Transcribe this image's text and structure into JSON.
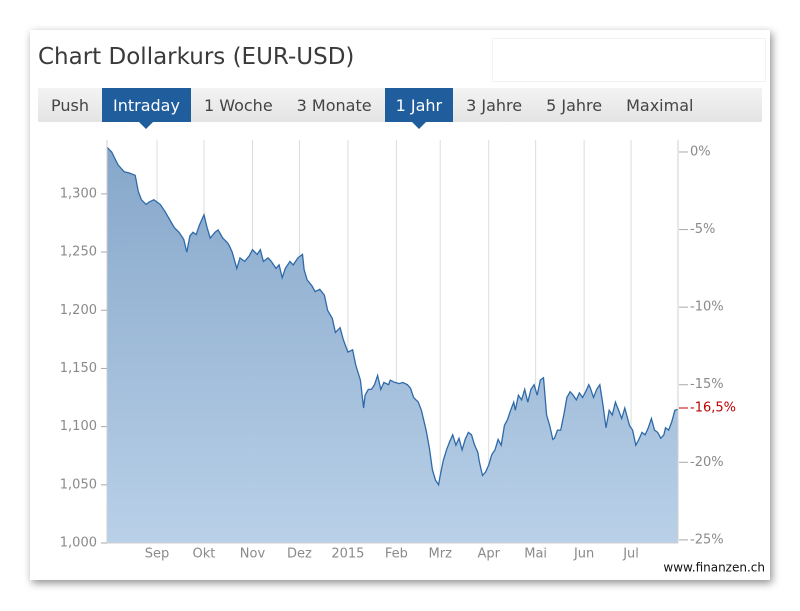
{
  "header": {
    "title": "Chart Dollarkurs (EUR-USD)"
  },
  "tabs": {
    "items": [
      "Push",
      "Intraday",
      "1 Woche",
      "3 Monate",
      "1 Jahr",
      "3 Jahre",
      "5 Jahre",
      "Maximal"
    ],
    "active": [
      1,
      4
    ]
  },
  "chart_data": {
    "type": "area",
    "color": "#2e6aa8",
    "fill_top": "#86a7ca",
    "fill_bottom": "#b9d0e8",
    "grid": "x",
    "xlim": [
      -17,
      348
    ],
    "xticks": [
      {
        "value": 15,
        "label": "Sep"
      },
      {
        "value": 45,
        "label": "Okt"
      },
      {
        "value": 76,
        "label": "Nov"
      },
      {
        "value": 106,
        "label": "Dez"
      },
      {
        "value": 137,
        "label": "2015"
      },
      {
        "value": 168,
        "label": "Feb"
      },
      {
        "value": 196,
        "label": "Mrz"
      },
      {
        "value": 227,
        "label": "Apr"
      },
      {
        "value": 257,
        "label": "Mai"
      },
      {
        "value": 288,
        "label": "Jun"
      },
      {
        "value": 318,
        "label": "Jul"
      }
    ],
    "ylim": [
      1.0,
      1.342
    ],
    "yticks": [
      {
        "value": 1.0,
        "label": "1,000"
      },
      {
        "value": 1.05,
        "label": "1,050"
      },
      {
        "value": 1.1,
        "label": "1,100"
      },
      {
        "value": 1.15,
        "label": "1,150"
      },
      {
        "value": 1.2,
        "label": "1,200"
      },
      {
        "value": 1.25,
        "label": "1,250"
      },
      {
        "value": 1.3,
        "label": "1,300"
      }
    ],
    "y2lim": [
      -25.2,
      0.45
    ],
    "y2ticks": [
      {
        "value": 0,
        "label": "0%"
      },
      {
        "value": -5,
        "label": "-5%"
      },
      {
        "value": -10,
        "label": "-10%"
      },
      {
        "value": -15,
        "label": "-15%"
      },
      {
        "value": -20,
        "label": "-20%"
      },
      {
        "value": -25,
        "label": "-25%"
      }
    ],
    "annotations": [
      {
        "value": -16.5,
        "label": "-16,5%",
        "axis": "y2",
        "color": "#c00000"
      }
    ],
    "x": [
      -17,
      -14,
      -10,
      -6,
      -3,
      1,
      3,
      5,
      8,
      10,
      13,
      17,
      20,
      23,
      26,
      29,
      32,
      34,
      36,
      38,
      40,
      42,
      45,
      47,
      49,
      52,
      54,
      57,
      60,
      61,
      63,
      66,
      68,
      71,
      74,
      76,
      79,
      81,
      83,
      86,
      88,
      91,
      93,
      95,
      97,
      100,
      102,
      105,
      108,
      109,
      111,
      114,
      116,
      119,
      122,
      124,
      127,
      129,
      132,
      134,
      137,
      140,
      142,
      145,
      147,
      148,
      150,
      152,
      154,
      156,
      158,
      160,
      163,
      164,
      167,
      170,
      172,
      175,
      177,
      179,
      182,
      184,
      187,
      189,
      191,
      193,
      195,
      196,
      198,
      200,
      202,
      204,
      206,
      208,
      210,
      212,
      214,
      216,
      218,
      220,
      221,
      223,
      225,
      227,
      229,
      231,
      233,
      235,
      237,
      239,
      241,
      243,
      244,
      246,
      248,
      250,
      252,
      254,
      256,
      258,
      260,
      262,
      264,
      266,
      268,
      269,
      271,
      273,
      275,
      277,
      279,
      281,
      283,
      285,
      287,
      289,
      291,
      292,
      294,
      296,
      298,
      300,
      302,
      304,
      306,
      308,
      310,
      312,
      314,
      316,
      317,
      319,
      321,
      323,
      325,
      327,
      329,
      331,
      333,
      335,
      337,
      339,
      340,
      342,
      344,
      346,
      348
    ],
    "values": [
      1.34,
      1.336,
      1.325,
      1.319,
      1.318,
      1.316,
      1.302,
      1.295,
      1.291,
      1.293,
      1.295,
      1.291,
      1.285,
      1.278,
      1.271,
      1.267,
      1.261,
      1.25,
      1.264,
      1.267,
      1.265,
      1.273,
      1.282,
      1.271,
      1.262,
      1.267,
      1.269,
      1.262,
      1.258,
      1.256,
      1.25,
      1.236,
      1.245,
      1.242,
      1.247,
      1.252,
      1.248,
      1.252,
      1.242,
      1.245,
      1.242,
      1.236,
      1.239,
      1.228,
      1.236,
      1.242,
      1.239,
      1.245,
      1.248,
      1.235,
      1.226,
      1.221,
      1.216,
      1.218,
      1.213,
      1.2,
      1.193,
      1.181,
      1.185,
      1.175,
      1.164,
      1.166,
      1.153,
      1.14,
      1.116,
      1.127,
      1.132,
      1.132,
      1.136,
      1.144,
      1.132,
      1.138,
      1.136,
      1.14,
      1.138,
      1.137,
      1.138,
      1.136,
      1.133,
      1.125,
      1.121,
      1.114,
      1.097,
      1.082,
      1.063,
      1.054,
      1.05,
      1.058,
      1.071,
      1.08,
      1.087,
      1.093,
      1.084,
      1.09,
      1.08,
      1.089,
      1.095,
      1.093,
      1.084,
      1.078,
      1.07,
      1.058,
      1.061,
      1.067,
      1.076,
      1.08,
      1.089,
      1.084,
      1.101,
      1.106,
      1.114,
      1.121,
      1.114,
      1.127,
      1.123,
      1.132,
      1.121,
      1.132,
      1.136,
      1.127,
      1.14,
      1.142,
      1.11,
      1.101,
      1.089,
      1.09,
      1.097,
      1.097,
      1.11,
      1.125,
      1.13,
      1.127,
      1.123,
      1.129,
      1.125,
      1.13,
      1.136,
      1.133,
      1.125,
      1.132,
      1.136,
      1.119,
      1.099,
      1.114,
      1.11,
      1.121,
      1.114,
      1.107,
      1.116,
      1.106,
      1.101,
      1.097,
      1.084,
      1.089,
      1.095,
      1.093,
      1.099,
      1.107,
      1.097,
      1.095,
      1.09,
      1.093,
      1.099,
      1.097,
      1.104,
      1.114,
      1.115
    ]
  },
  "footer": {
    "source": "www.finanzen.ch"
  }
}
